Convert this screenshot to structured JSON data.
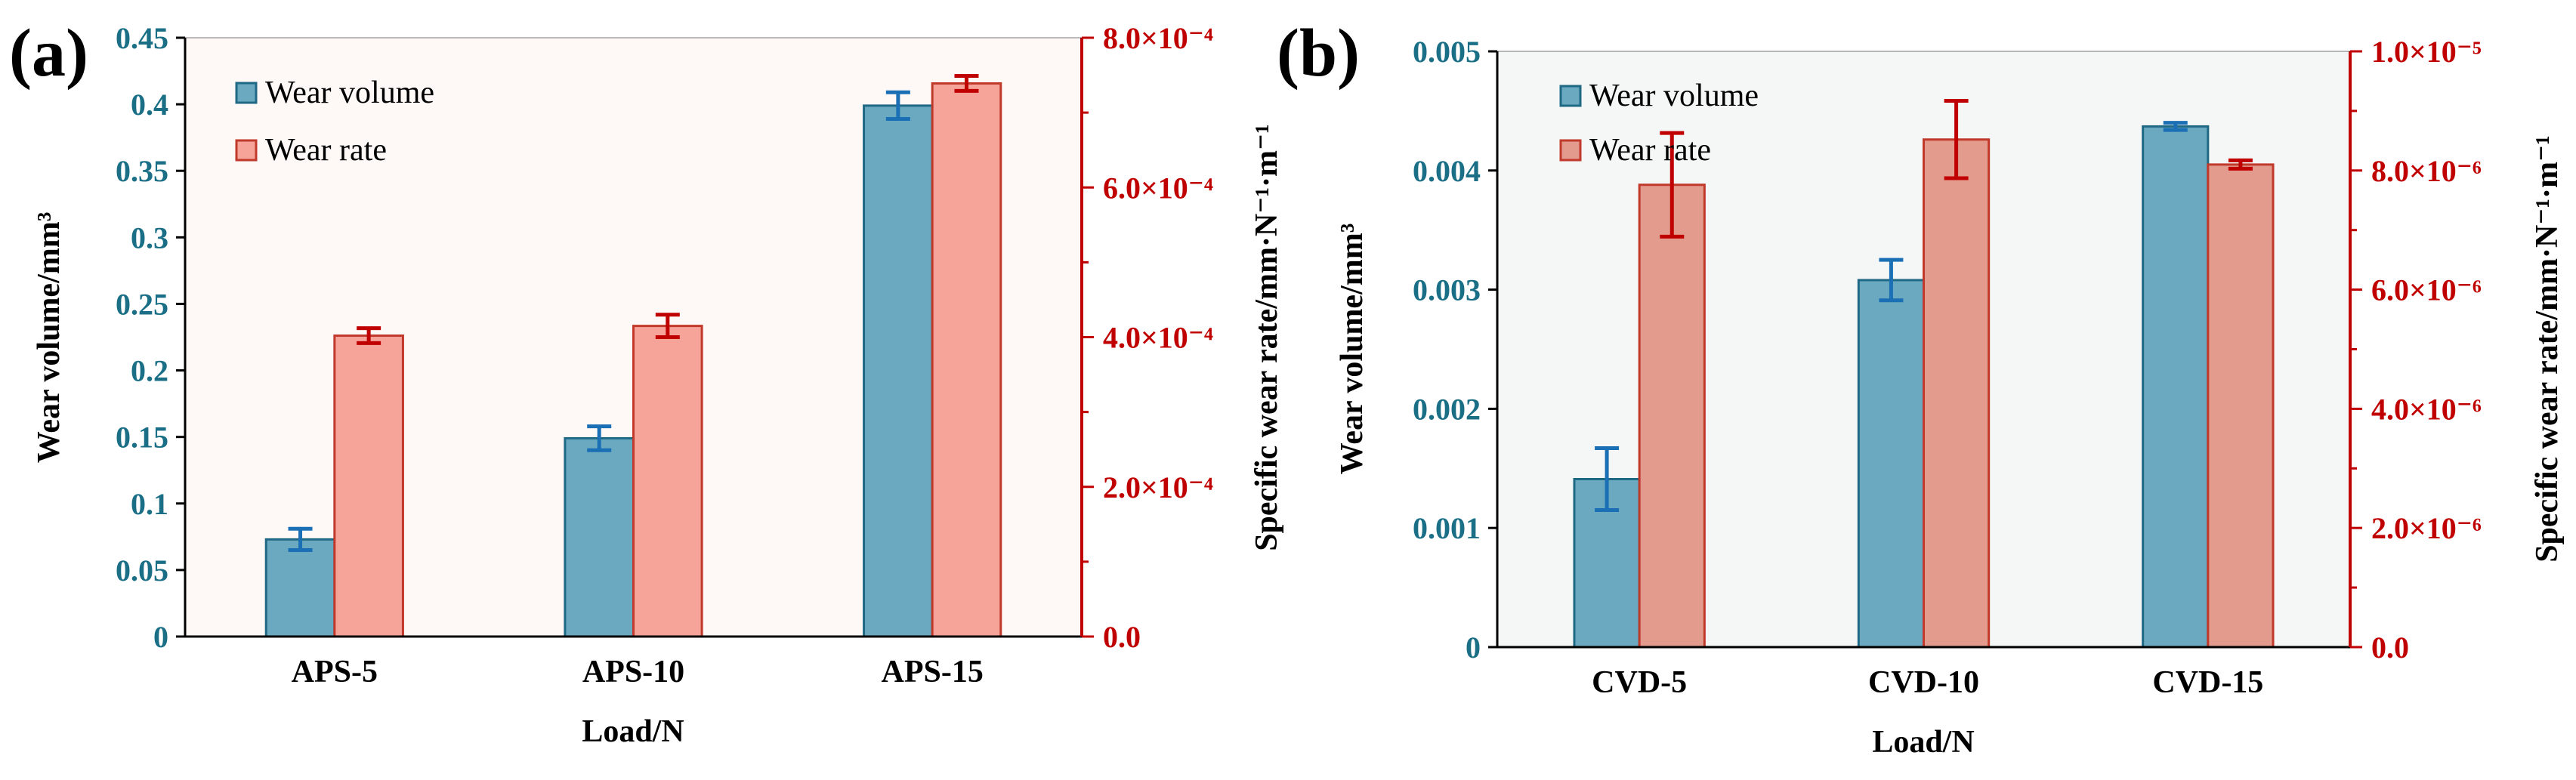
{
  "chart_data": [
    {
      "type": "bar",
      "panel_label": "(a)",
      "categories": [
        "APS-5",
        "APS-10",
        "APS-15"
      ],
      "xlabel": "Load/N",
      "ylabel": "Wear volume/mm³",
      "y2label": "Specific wear rate/mm·N⁻¹·m⁻¹",
      "ylim": [
        0,
        0.45
      ],
      "y2lim": [
        0,
        0.0008
      ],
      "yticks": [
        0,
        0.05,
        0.1,
        0.15,
        0.2,
        0.25,
        0.3,
        0.35,
        0.4,
        0.45
      ],
      "ytick_labels": [
        "0",
        "0.05",
        "0.1",
        "0.15",
        "0.2",
        "0.25",
        "0.3",
        "0.35",
        "0.4",
        "0.45"
      ],
      "y2ticks": [
        0,
        0.0002,
        0.0004,
        0.0006,
        0.0008
      ],
      "y2tick_labels": [
        "0.0",
        "2.0×10⁻⁴",
        "4.0×10⁻⁴",
        "6.0×10⁻⁴",
        "8.0×10⁻⁴"
      ],
      "legend_position": "top-left",
      "series": [
        {
          "name": "Wear volume",
          "axis": "left",
          "values": [
            0.073,
            0.149,
            0.399
          ],
          "errors": [
            0.008,
            0.009,
            0.01
          ]
        },
        {
          "name": "Wear rate",
          "axis": "right",
          "values": [
            0.000402,
            0.000415,
            0.000739
          ],
          "errors": [
            1e-05,
            1.5e-05,
            1e-05
          ]
        }
      ]
    },
    {
      "type": "bar",
      "panel_label": "(b)",
      "categories": [
        "CVD-5",
        "CVD-10",
        "CVD-15"
      ],
      "xlabel": "Load/N",
      "ylabel": "Wear volume/mm³",
      "y2label": "Specific wear rate/mm·N⁻¹·m⁻¹",
      "ylim": [
        0,
        0.005
      ],
      "y2lim": [
        0,
        1e-05
      ],
      "yticks": [
        0,
        0.001,
        0.002,
        0.003,
        0.004,
        0.005
      ],
      "ytick_labels": [
        "0",
        "0.001",
        "0.002",
        "0.003",
        "0.004",
        "0.005"
      ],
      "y2ticks": [
        0,
        2e-06,
        4e-06,
        6e-06,
        8e-06,
        1e-05
      ],
      "y2tick_labels": [
        "0.0",
        "2.0×10⁻⁶",
        "4.0×10⁻⁶",
        "6.0×10⁻⁶",
        "8.0×10⁻⁶",
        "1.0×10⁻⁵"
      ],
      "legend_position": "top-left",
      "series": [
        {
          "name": "Wear volume",
          "axis": "left",
          "values": [
            0.00141,
            0.00308,
            0.00437
          ],
          "errors": [
            0.00026,
            0.00017,
            3e-05
          ]
        },
        {
          "name": "Wear rate",
          "axis": "right",
          "values": [
            7.76e-06,
            8.52e-06,
            8.1e-06
          ],
          "errors": [
            8.7e-07,
            6.5e-07,
            7e-08
          ]
        }
      ]
    }
  ],
  "colors": {
    "volume_fill": "#6aa9bf",
    "volume_edge": "#1f6985",
    "volume_error": "#1b6fb5",
    "rate_fill_a": "#f6a39a",
    "rate_fill_b": "#e39b8e",
    "rate_edge": "#c0392b",
    "rate_error": "#c00000",
    "left_axis": "#1a6f86",
    "right_axis": "#c00000",
    "plot_bg_a": "#fef8f6",
    "plot_bg_b": "#f4f7f6"
  }
}
